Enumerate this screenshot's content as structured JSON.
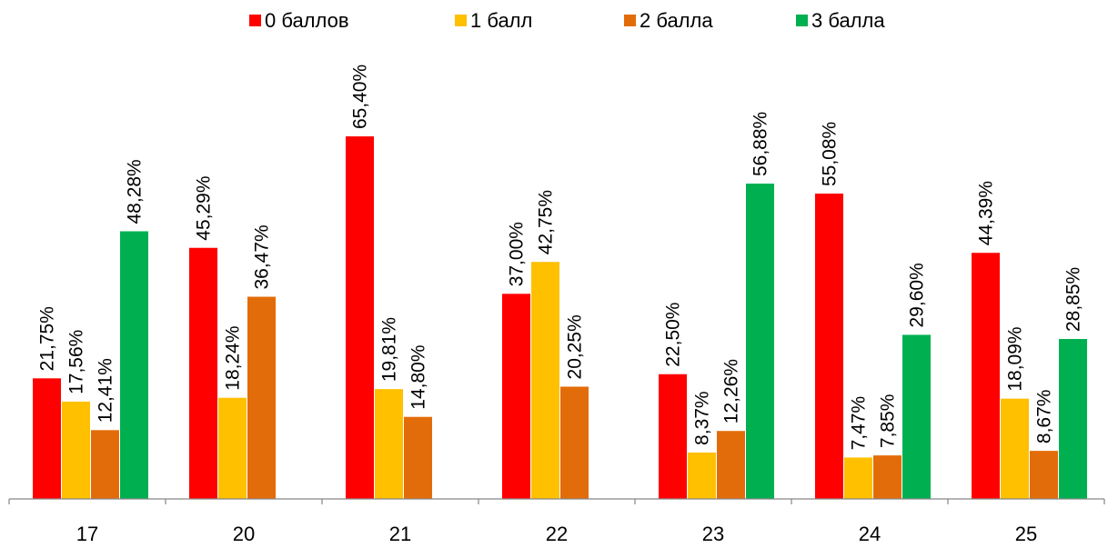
{
  "chart_data": {
    "type": "bar",
    "categories": [
      "17",
      "20",
      "21",
      "22",
      "23",
      "24",
      "25"
    ],
    "series": [
      {
        "name": "0 баллов",
        "color": "#ff0000",
        "values": [
          21.75,
          45.29,
          65.4,
          37.0,
          22.5,
          55.08,
          44.39
        ],
        "labels": [
          "21,75%",
          "45,29%",
          "65,40%",
          "37,00%",
          "22,50%",
          "55,08%",
          "44,39%"
        ]
      },
      {
        "name": "1 балл",
        "color": "#ffc000",
        "values": [
          17.56,
          18.24,
          19.81,
          42.75,
          8.37,
          7.47,
          18.09
        ],
        "labels": [
          "17,56%",
          "18,24%",
          "19,81%",
          "42,75%",
          "8,37%",
          "7,47%",
          "18,09%"
        ]
      },
      {
        "name": "2 балла",
        "color": "#e36c0a",
        "values": [
          12.41,
          36.47,
          14.8,
          20.25,
          12.26,
          7.85,
          8.67
        ],
        "labels": [
          "12,41%",
          "36,47%",
          "14,80%",
          "20,25%",
          "12,26%",
          "7,85%",
          "8,67%"
        ]
      },
      {
        "name": "3 балла",
        "color": "#00b050",
        "values": [
          48.28,
          0,
          0,
          0,
          56.88,
          29.6,
          28.85
        ],
        "labels": [
          "48,28%",
          "",
          "",
          "",
          "56,88%",
          "29,60%",
          "28,85%"
        ]
      }
    ],
    "legend_position": "top",
    "grid": false,
    "ylim": [
      0,
      70
    ]
  }
}
